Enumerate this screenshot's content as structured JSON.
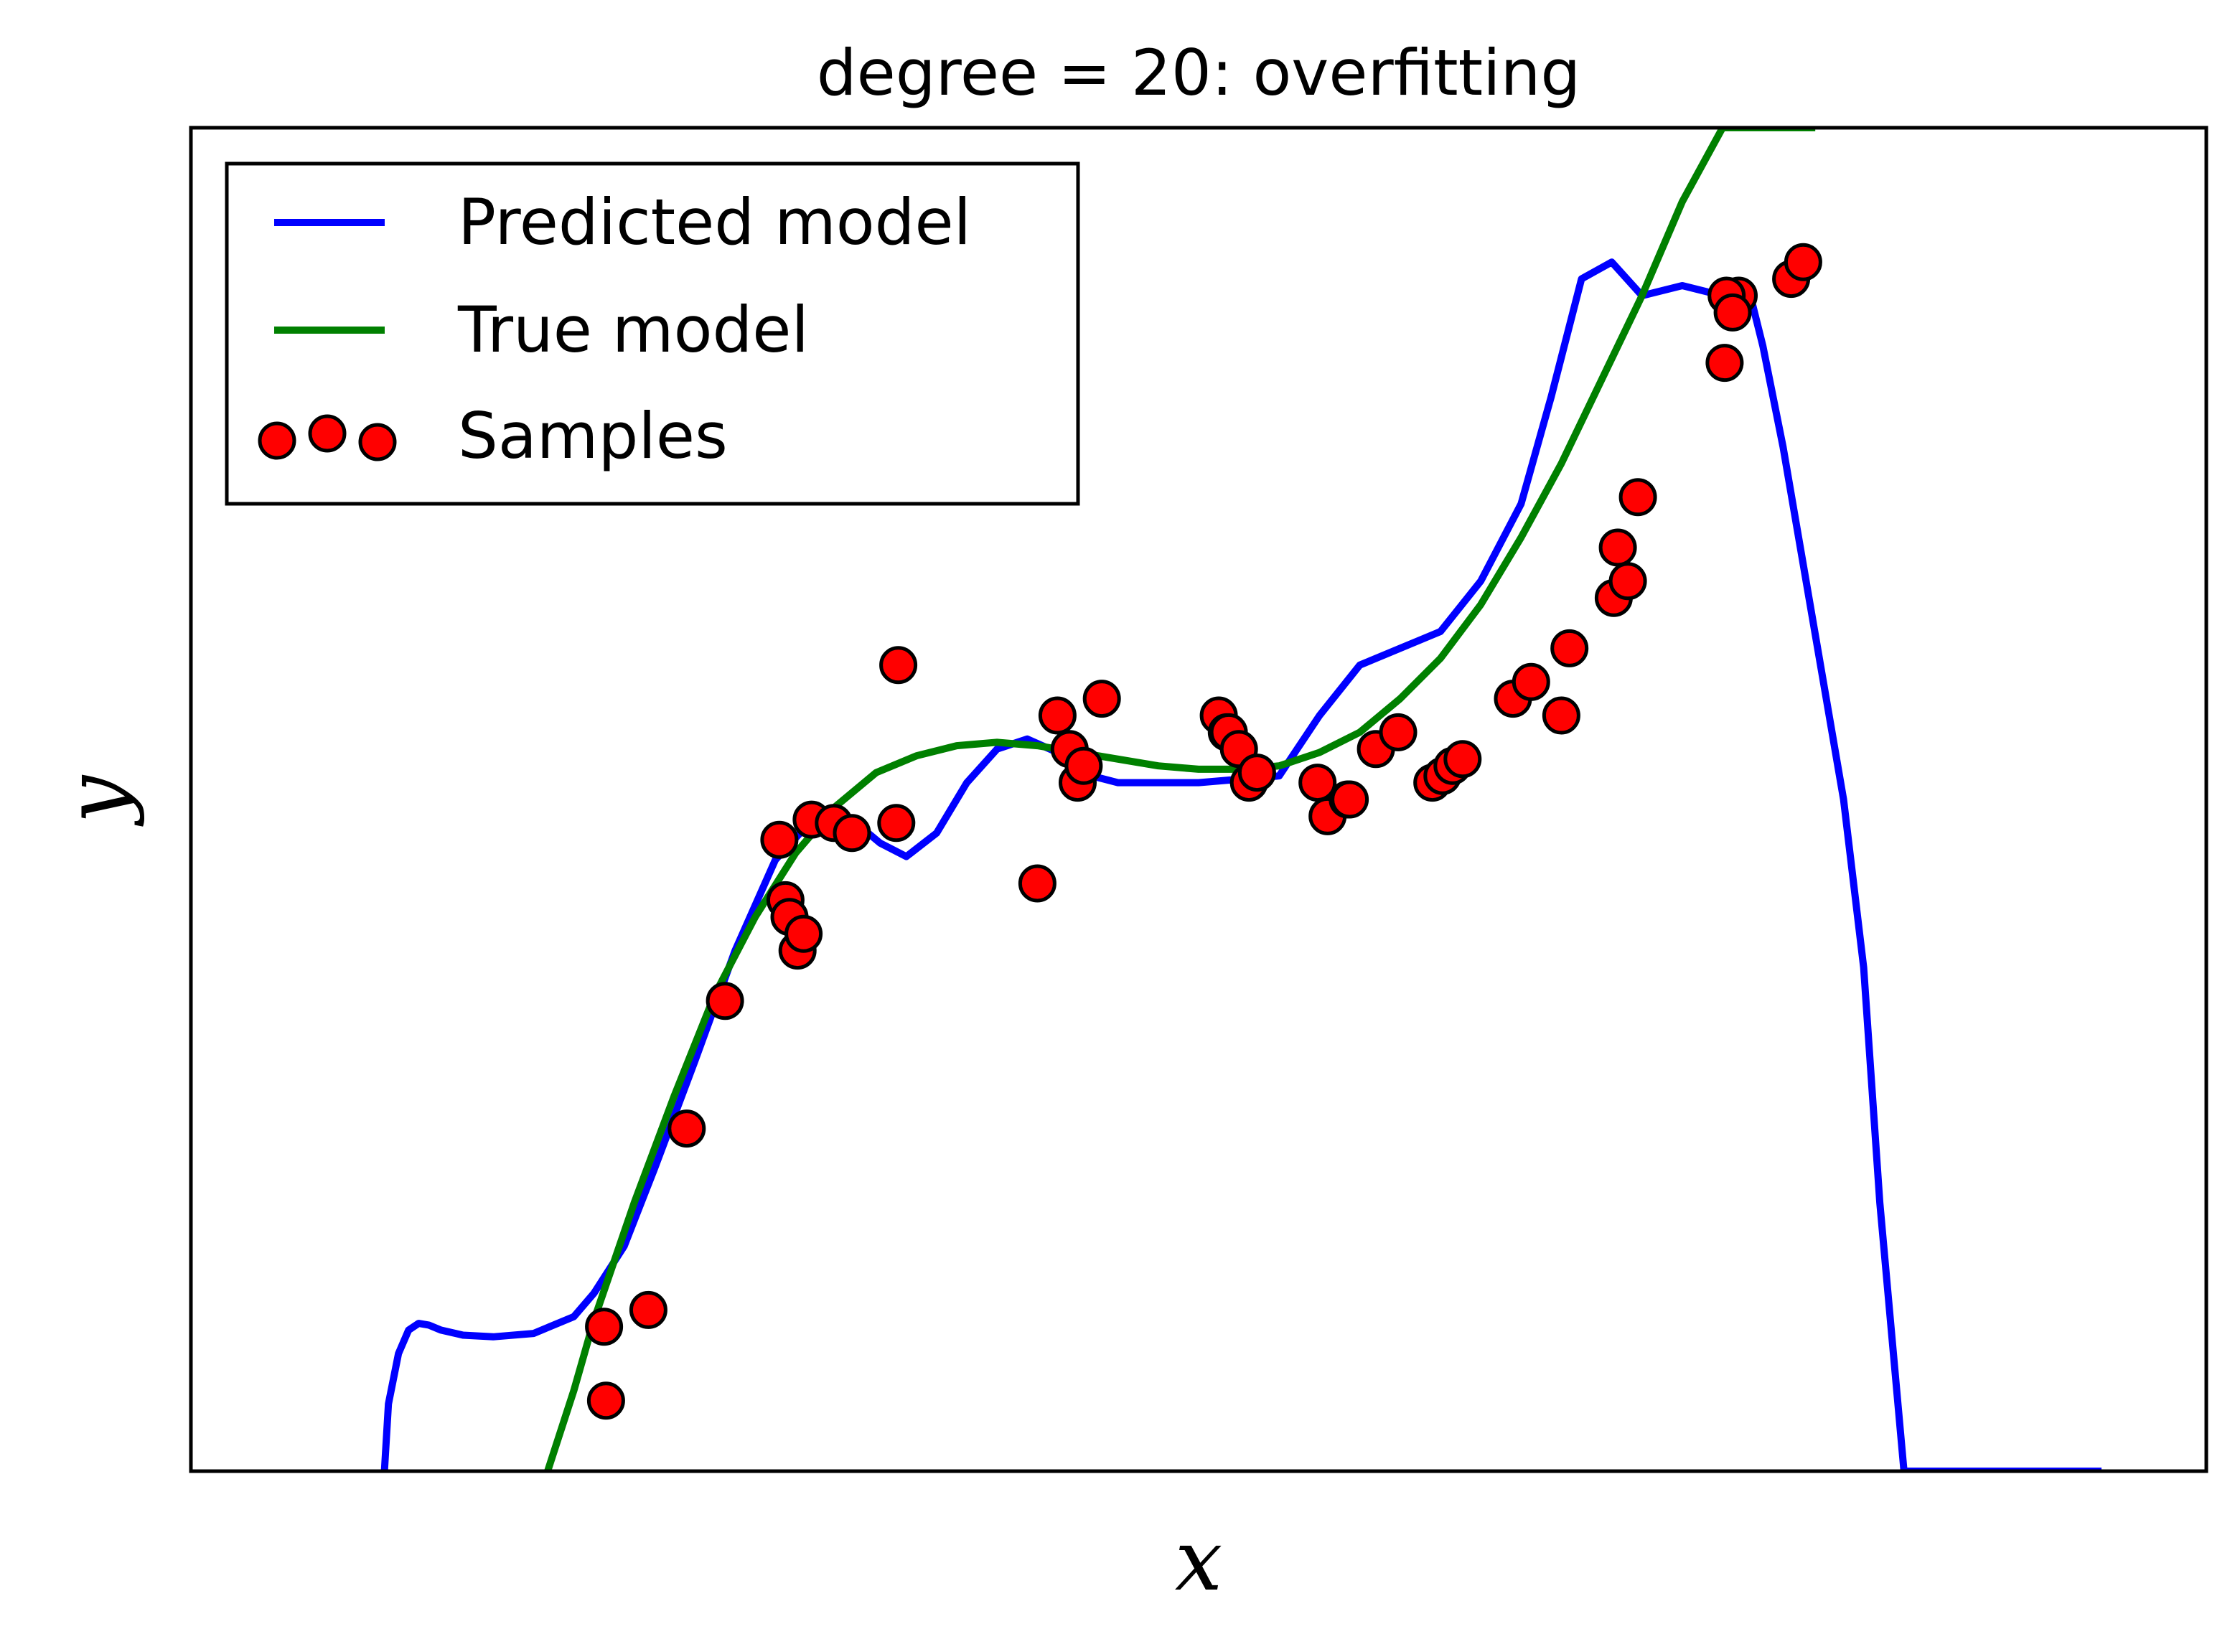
{
  "chart_data": {
    "type": "line",
    "title": "degree = 20: overfitting",
    "xlabel": "x",
    "ylabel": "y",
    "xlim": [
      0,
      1
    ],
    "ylim": [
      -2.0,
      2.0
    ],
    "ticks_shown": false,
    "grid": false,
    "legend_position": "top-left",
    "legend": [
      "Predicted model",
      "True model",
      "Samples"
    ],
    "colors": {
      "predicted": "#0000ff",
      "true": "#008000",
      "samples_fill": "#ff0000",
      "samples_edge": "#000000",
      "frame": "#000000"
    },
    "series": [
      {
        "name": "Predicted model",
        "kind": "line",
        "x": [
          0.096,
          0.098,
          0.103,
          0.108,
          0.113,
          0.118,
          0.124,
          0.135,
          0.15,
          0.17,
          0.19,
          0.2,
          0.215,
          0.23,
          0.25,
          0.27,
          0.29,
          0.31,
          0.32,
          0.33,
          0.342,
          0.355,
          0.37,
          0.385,
          0.4,
          0.415,
          0.43,
          0.447,
          0.46,
          0.48,
          0.5,
          0.52,
          0.54,
          0.56,
          0.58,
          0.6,
          0.62,
          0.64,
          0.66,
          0.675,
          0.69,
          0.705,
          0.72,
          0.74,
          0.76,
          0.775,
          0.78,
          0.79,
          0.8,
          0.81,
          0.82,
          0.83,
          0.838,
          0.85,
          0.856,
          0.862,
          0.87,
          0.88,
          0.89,
          0.9,
          0.908,
          0.915,
          0.92,
          0.925,
          0.93,
          0.934,
          0.938,
          0.941,
          0.944,
          0.946,
          0.948
        ],
        "y": [
          -2.0,
          -1.8,
          -1.65,
          -1.58,
          -1.56,
          -1.565,
          -1.58,
          -1.595,
          -1.6,
          -1.59,
          -1.54,
          -1.47,
          -1.33,
          -1.1,
          -0.78,
          -0.45,
          -0.18,
          -0.05,
          -0.04,
          -0.07,
          -0.13,
          -0.17,
          -0.1,
          0.05,
          0.15,
          0.18,
          0.14,
          0.07,
          0.05,
          0.05,
          0.05,
          0.06,
          0.07,
          0.25,
          0.4,
          0.45,
          0.5,
          0.65,
          0.88,
          1.2,
          1.55,
          1.6,
          1.5,
          1.53,
          1.5,
          1.47,
          1.35,
          1.05,
          0.7,
          0.35,
          0.0,
          -0.5,
          -1.2,
          -2.0,
          -2.0,
          -2.0,
          -2.0,
          -2.0,
          -2.0,
          -2.0,
          -2.0,
          -2.0,
          -2.0,
          -2.0,
          -2.0,
          -2.0,
          -2.0,
          -2.0,
          -2.0,
          -2.0,
          -2.0
        ]
      },
      {
        "name": "True model",
        "kind": "line",
        "x": [
          0.177,
          0.19,
          0.2,
          0.22,
          0.24,
          0.26,
          0.28,
          0.3,
          0.32,
          0.34,
          0.36,
          0.38,
          0.4,
          0.42,
          0.44,
          0.46,
          0.48,
          0.5,
          0.52,
          0.54,
          0.56,
          0.58,
          0.6,
          0.62,
          0.64,
          0.66,
          0.68,
          0.7,
          0.72,
          0.74,
          0.76,
          0.78,
          0.8,
          0.806
        ],
        "y": [
          -2.0,
          -1.76,
          -1.55,
          -1.2,
          -0.88,
          -0.58,
          -0.35,
          -0.16,
          -0.02,
          0.08,
          0.13,
          0.16,
          0.17,
          0.16,
          0.14,
          0.12,
          0.1,
          0.09,
          0.09,
          0.1,
          0.14,
          0.2,
          0.3,
          0.42,
          0.58,
          0.78,
          1.0,
          1.25,
          1.5,
          1.78,
          2.0,
          2.0,
          2.0,
          2.0
        ]
      },
      {
        "name": "Samples",
        "kind": "scatter",
        "x": [
          0.205,
          0.206,
          0.227,
          0.246,
          0.265,
          0.292,
          0.295,
          0.297,
          0.301,
          0.304,
          0.308,
          0.319,
          0.328,
          0.35,
          0.351,
          0.42,
          0.43,
          0.436,
          0.44,
          0.443,
          0.452,
          0.51,
          0.514,
          0.515,
          0.52,
          0.525,
          0.529,
          0.559,
          0.564,
          0.574,
          0.575,
          0.588,
          0.599,
          0.616,
          0.621,
          0.626,
          0.631,
          0.656,
          0.665,
          0.684,
          0.68,
          0.706,
          0.708,
          0.718,
          0.713,
          0.761,
          0.768,
          0.762,
          0.765,
          0.794,
          0.8
        ],
        "y": [
          -1.57,
          -1.79,
          -1.52,
          -0.98,
          -0.6,
          -0.12,
          -0.3,
          -0.35,
          -0.45,
          -0.4,
          -0.06,
          -0.07,
          -0.1,
          -0.07,
          0.4,
          -0.25,
          0.25,
          0.15,
          0.05,
          0.1,
          0.3,
          0.25,
          0.2,
          0.2,
          0.15,
          0.05,
          0.08,
          0.05,
          -0.05,
          0.0,
          0.0,
          0.15,
          0.2,
          0.05,
          0.07,
          0.1,
          0.12,
          0.3,
          0.35,
          0.45,
          0.25,
          0.6,
          0.75,
          0.9,
          0.65,
          1.3,
          1.5,
          1.5,
          1.45,
          1.55,
          1.6
        ]
      }
    ]
  }
}
